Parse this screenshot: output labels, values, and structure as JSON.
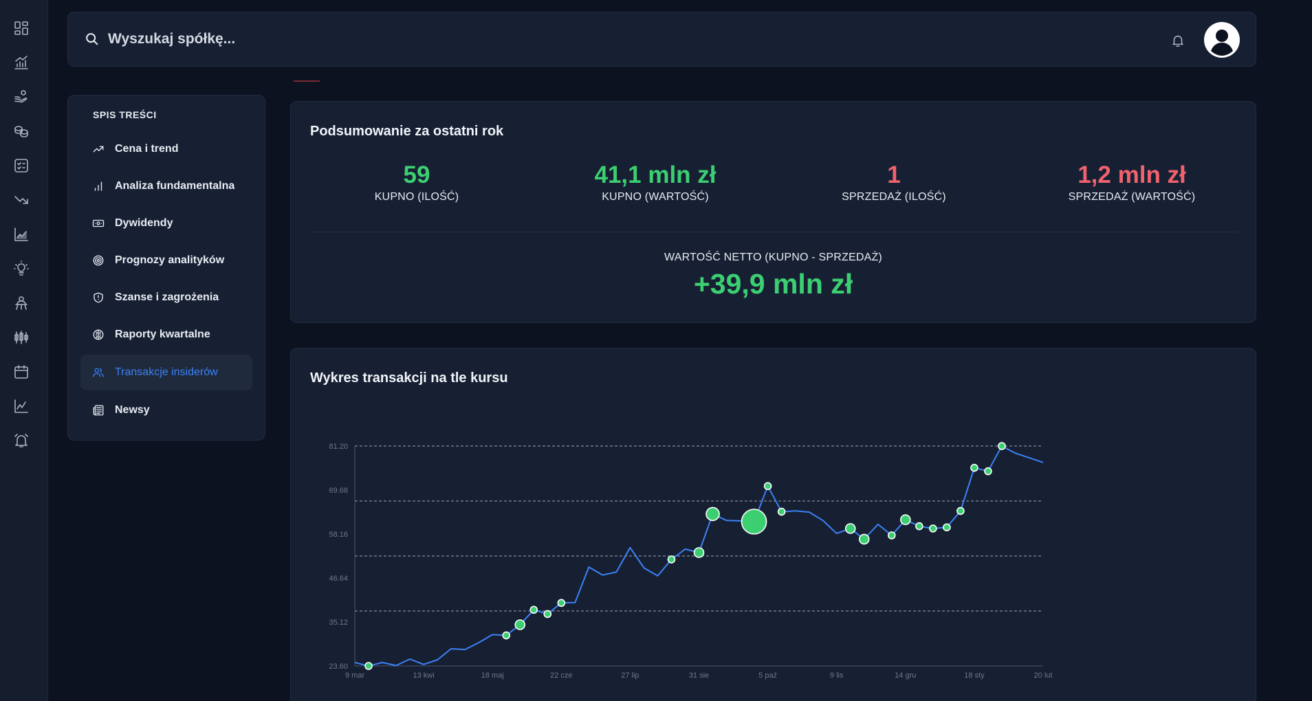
{
  "search": {
    "placeholder": "Wyszukaj spółkę..."
  },
  "toc": {
    "title": "SPIS TREŚCI",
    "items": [
      {
        "label": "Cena i trend",
        "icon": "trending-up-icon",
        "active": false
      },
      {
        "label": "Analiza fundamentalna",
        "icon": "bar-chart-icon",
        "active": false
      },
      {
        "label": "Dywidendy",
        "icon": "banknote-icon",
        "active": false
      },
      {
        "label": "Prognozy analityków",
        "icon": "target-icon",
        "active": false
      },
      {
        "label": "Szanse i zagrożenia",
        "icon": "shield-icon",
        "active": false
      },
      {
        "label": "Raporty kwartalne",
        "icon": "brain-icon",
        "active": false
      },
      {
        "label": "Transakcje insiderów",
        "icon": "users-icon",
        "active": true
      },
      {
        "label": "Newsy",
        "icon": "newspaper-icon",
        "active": false
      }
    ]
  },
  "summary": {
    "title": "Podsumowanie za ostatni rok",
    "stats": [
      {
        "value": "59",
        "label": "KUPNO (ILOŚĆ)",
        "tone": "green"
      },
      {
        "value": "41,1 mln zł",
        "label": "KUPNO (WARTOŚĆ)",
        "tone": "green"
      },
      {
        "value": "1",
        "label": "SPRZEDAŻ (ILOŚĆ)",
        "tone": "red"
      },
      {
        "value": "1,2 mln zł",
        "label": "SPRZEDAŻ (WARTOŚĆ)",
        "tone": "red"
      }
    ],
    "net_label": "WARTOŚĆ NETTO (KUPNO - SPRZEDAŻ)",
    "net_value": "+39,9 mln zł"
  },
  "chart": {
    "title": "Wykres transakcji na tle kursu"
  },
  "colors": {
    "accent": "#3b82f6",
    "buy": "#3ccf72",
    "sell": "#f0626d",
    "line": "#3b82f6"
  },
  "chart_data": {
    "type": "line",
    "title": "Wykres transakcji na tle kursu",
    "xlabel": "",
    "ylabel": "",
    "ylim": [
      23.6,
      81.2
    ],
    "yticks": [
      "23.60",
      "35.12",
      "46.64",
      "58.16",
      "69.68",
      "81.20"
    ],
    "xticks": [
      "9 mar",
      "13 kwi",
      "18 maj",
      "22 cze",
      "27 lip",
      "31 sie",
      "5 paź",
      "9 lis",
      "14 gru",
      "18 sty",
      "20 lut"
    ],
    "grid_values": [
      81.2,
      66.8,
      52.4,
      38.0
    ],
    "price": [
      24.5,
      23.6,
      24.5,
      23.7,
      25.4,
      24.0,
      25.2,
      28.1,
      27.9,
      29.7,
      31.8,
      31.6,
      34.4,
      38.3,
      37.2,
      40.1,
      40.2,
      49.5,
      47.4,
      48.2,
      54.6,
      49.3,
      47.2,
      51.5,
      54.2,
      53.3,
      63.4,
      61.7,
      61.6,
      61.4,
      70.7,
      64.0,
      64.2,
      63.9,
      61.7,
      58.3,
      59.6,
      56.8,
      60.7,
      57.8,
      61.9,
      60.2,
      59.6,
      59.9,
      64.2,
      75.5,
      74.6,
      81.2,
      79.3,
      78.1,
      76.9
    ],
    "transactions": [
      {
        "index": 1,
        "size": "small"
      },
      {
        "index": 11,
        "size": "small"
      },
      {
        "index": 12,
        "size": "medium"
      },
      {
        "index": 13,
        "size": "small"
      },
      {
        "index": 14,
        "size": "small"
      },
      {
        "index": 15,
        "size": "small"
      },
      {
        "index": 23,
        "size": "small"
      },
      {
        "index": 25,
        "size": "medium"
      },
      {
        "index": 26,
        "size": "large"
      },
      {
        "index": 29,
        "size": "xlarge"
      },
      {
        "index": 30,
        "size": "small"
      },
      {
        "index": 31,
        "size": "small"
      },
      {
        "index": 36,
        "size": "medium"
      },
      {
        "index": 37,
        "size": "medium"
      },
      {
        "index": 39,
        "size": "small"
      },
      {
        "index": 40,
        "size": "medium"
      },
      {
        "index": 41,
        "size": "small"
      },
      {
        "index": 42,
        "size": "small"
      },
      {
        "index": 43,
        "size": "small"
      },
      {
        "index": 44,
        "size": "small"
      },
      {
        "index": 45,
        "size": "small"
      },
      {
        "index": 46,
        "size": "small"
      },
      {
        "index": 47,
        "size": "small"
      }
    ]
  }
}
